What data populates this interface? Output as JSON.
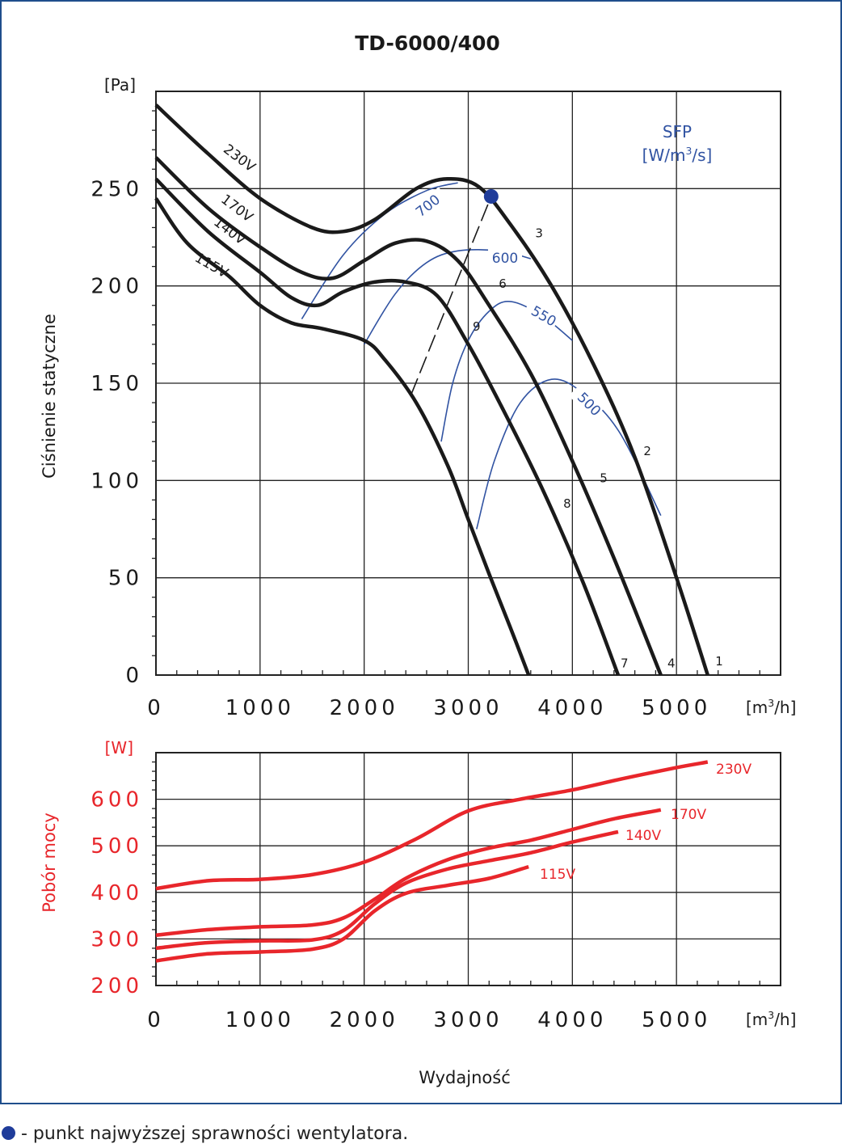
{
  "chart_data": [
    {
      "type": "line",
      "title": "TD-6000/400",
      "ylabel": "Ciśnienie statyczne",
      "yunit": "[Pa]",
      "xunit_base": "[m",
      "xunit_sup": "3",
      "xunit_tail": "/h]",
      "xlim": [
        0,
        6000
      ],
      "ylim": [
        0,
        300
      ],
      "xticks": [
        "0",
        "1000",
        "2000",
        "3000",
        "4000",
        "5000"
      ],
      "yticks": [
        "0",
        "50",
        "100",
        "150",
        "200",
        "250"
      ],
      "grid": true,
      "series": [
        {
          "name": "230V",
          "x": [
            0,
            500,
            1000,
            1500,
            1800,
            2100,
            2500,
            2800,
            3100,
            3400,
            3800,
            4200,
            4600,
            5000,
            5300
          ],
          "y": [
            293,
            268,
            245,
            230,
            228,
            234,
            250,
            255,
            251,
            232,
            200,
            160,
            112,
            50,
            0
          ]
        },
        {
          "name": "170V",
          "x": [
            0,
            500,
            1000,
            1400,
            1700,
            2000,
            2300,
            2600,
            2900,
            3200,
            3600,
            4000,
            4400,
            4850
          ],
          "y": [
            266,
            240,
            220,
            207,
            204,
            213,
            222,
            223,
            213,
            190,
            155,
            110,
            60,
            0
          ]
        },
        {
          "name": "140V",
          "x": [
            0,
            500,
            1000,
            1300,
            1550,
            1800,
            2100,
            2400,
            2700,
            3000,
            3300,
            3700,
            4100,
            4440
          ],
          "y": [
            255,
            228,
            207,
            194,
            190,
            197,
            202,
            202,
            195,
            170,
            140,
            97,
            48,
            0
          ]
        },
        {
          "name": "115V",
          "x": [
            0,
            300,
            700,
            1000,
            1300,
            1600,
            2000,
            2200,
            2500,
            2800,
            3000,
            3200,
            3400,
            3580
          ],
          "y": [
            245,
            222,
            205,
            190,
            181,
            178,
            172,
            162,
            140,
            108,
            80,
            52,
            25,
            0
          ]
        }
      ],
      "series_labels": [
        "230V",
        "170V",
        "140V",
        "115V"
      ],
      "sfp_title": "SFP",
      "sfp_unit_base": "[W/m",
      "sfp_unit_sup": "3",
      "sfp_unit_tail": "/s]",
      "sfp_curves": [
        {
          "label": "700",
          "x": [
            1400,
            1800,
            2200,
            2600,
            2900
          ],
          "y": [
            183,
            216,
            237,
            249,
            253
          ]
        },
        {
          "label": "600",
          "x": [
            2000,
            2300,
            2600,
            2900,
            3300,
            3600
          ],
          "y": [
            170,
            196,
            212,
            218,
            218,
            214
          ]
        },
        {
          "label": "550",
          "x": [
            2740,
            2850,
            3000,
            3200,
            3400,
            3700,
            4000
          ],
          "y": [
            120,
            150,
            172,
            187,
            192,
            185,
            172
          ]
        },
        {
          "label": "500",
          "x": [
            3080,
            3250,
            3500,
            3800,
            4100,
            4450,
            4850
          ],
          "y": [
            75,
            110,
            140,
            152,
            145,
            125,
            82
          ]
        }
      ],
      "point_labels": [
        {
          "label": "1",
          "x": 5410,
          "y": 5
        },
        {
          "label": "2",
          "x": 4720,
          "y": 113
        },
        {
          "label": "3",
          "x": 3680,
          "y": 225
        },
        {
          "label": "4",
          "x": 4950,
          "y": 4
        },
        {
          "label": "5",
          "x": 4300,
          "y": 99
        },
        {
          "label": "6",
          "x": 3330,
          "y": 199
        },
        {
          "label": "7",
          "x": 4500,
          "y": 4
        },
        {
          "label": "8",
          "x": 3950,
          "y": 86
        },
        {
          "label": "9",
          "x": 3080,
          "y": 177
        }
      ],
      "efficiency_line": {
        "x": [
          2450,
          3220
        ],
        "y": [
          144,
          246
        ]
      },
      "best_point": {
        "x": 3220,
        "y": 246
      },
      "colors": {
        "curve": "#1a1a1a",
        "sfp": "#3153a2",
        "point": "#1f3c9a"
      }
    },
    {
      "type": "line",
      "title": "",
      "ylabel": "Pobór mocy",
      "yunit": "[W]",
      "xlabel": "Wydajność",
      "xunit_base": "[m",
      "xunit_sup": "3",
      "xunit_tail": "/h]",
      "xlim": [
        0,
        6000
      ],
      "ylim": [
        200,
        700
      ],
      "xticks": [
        "0",
        "1000",
        "2000",
        "3000",
        "4000",
        "5000"
      ],
      "yticks": [
        "200",
        "300",
        "400",
        "500",
        "600"
      ],
      "grid": true,
      "series": [
        {
          "name": "230V",
          "x": [
            0,
            500,
            1000,
            1500,
            2000,
            2500,
            3000,
            3500,
            4000,
            4500,
            5000,
            5300
          ],
          "y": [
            408,
            425,
            428,
            438,
            465,
            515,
            575,
            600,
            620,
            645,
            668,
            680
          ]
        },
        {
          "name": "170V",
          "x": [
            0,
            500,
            1000,
            1500,
            1800,
            2100,
            2400,
            2800,
            3200,
            3600,
            4000,
            4400,
            4850
          ],
          "y": [
            308,
            320,
            326,
            330,
            345,
            385,
            430,
            470,
            495,
            512,
            535,
            558,
            577
          ]
        },
        {
          "name": "140V",
          "x": [
            0,
            500,
            1000,
            1500,
            1800,
            2100,
            2400,
            2800,
            3200,
            3600,
            4000,
            4440
          ],
          "y": [
            280,
            292,
            296,
            298,
            318,
            375,
            420,
            450,
            468,
            485,
            508,
            530
          ]
        },
        {
          "name": "115V",
          "x": [
            0,
            500,
            1000,
            1500,
            1800,
            2100,
            2400,
            2800,
            3200,
            3580
          ],
          "y": [
            253,
            268,
            272,
            278,
            300,
            360,
            398,
            415,
            430,
            455
          ]
        }
      ],
      "series_labels": [
        "230V",
        "170V",
        "140V",
        "115V"
      ],
      "colors": {
        "curve": "#e8262b"
      }
    }
  ],
  "footer": {
    "legend_text": "- punkt najwyższej sprawności wentylatora."
  }
}
